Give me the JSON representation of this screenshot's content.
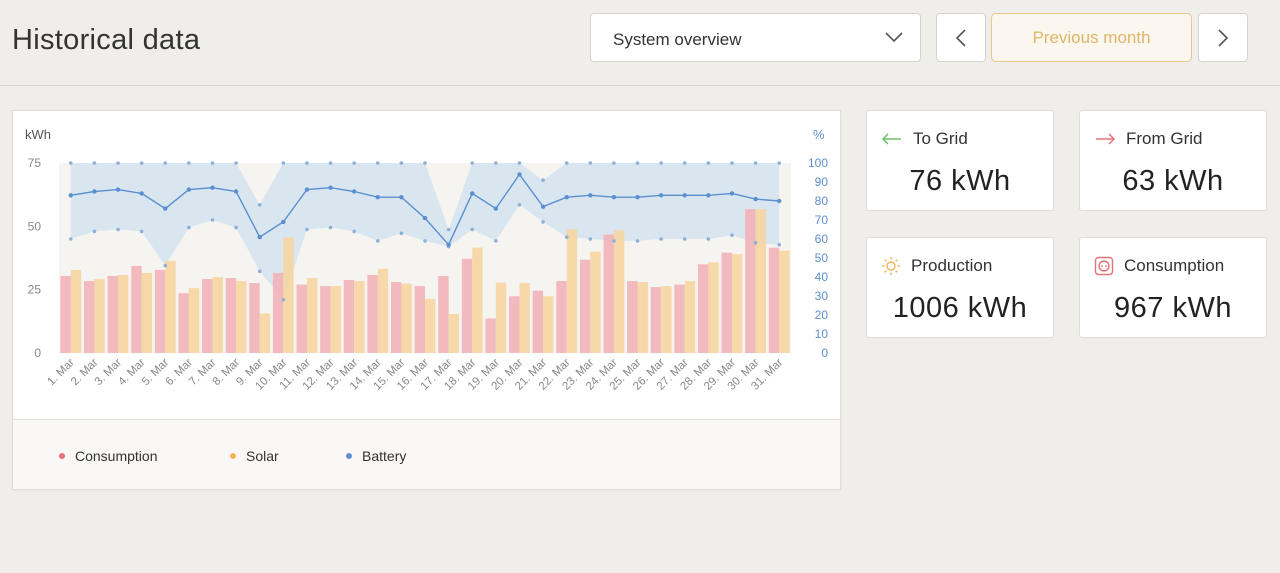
{
  "header": {
    "title": "Historical data",
    "select_value": "System overview",
    "previous_label": "Previous month"
  },
  "stats": {
    "to_grid": {
      "label": "To Grid",
      "value": "76 kWh"
    },
    "from_grid": {
      "label": "From Grid",
      "value": "63 kWh"
    },
    "production": {
      "label": "Production",
      "value": "1006 kWh"
    },
    "consumption": {
      "label": "Consumption",
      "value": "967 kWh"
    }
  },
  "legend": {
    "consumption": "Consumption",
    "solar": "Solar",
    "battery": "Battery"
  },
  "colors": {
    "consumption": "#f2b3b8",
    "solar": "#f7d49c",
    "battery": "#5b8fcf",
    "battery_band": "#d6e4ef",
    "accent": "#e0b46a"
  },
  "chart_data": {
    "type": "bar",
    "ylabel_left": "kWh",
    "ylabel_right": "%",
    "ylim_left": [
      0,
      75
    ],
    "ylim_right": [
      0,
      100
    ],
    "yticks_left": [
      0,
      25,
      50,
      75
    ],
    "yticks_right": [
      0,
      10,
      20,
      30,
      40,
      50,
      60,
      70,
      80,
      90,
      100
    ],
    "categories": [
      "1. Mar",
      "2. Mar",
      "3. Mar",
      "4. Mar",
      "5. Mar",
      "6. Mar",
      "7. Mar",
      "8. Mar",
      "9. Mar",
      "10. Mar",
      "11. Mar",
      "12. Mar",
      "13. Mar",
      "14. Mar",
      "15. Mar",
      "16. Mar",
      "17. Mar",
      "18. Mar",
      "19. Mar",
      "20. Mar",
      "21. Mar",
      "22. Mar",
      "23. Mar",
      "24. Mar",
      "25. Mar",
      "26. Mar",
      "27. Mar",
      "28. Mar",
      "29. Mar",
      "30. Mar",
      "31. Mar"
    ],
    "series": [
      {
        "name": "Consumption",
        "type": "bar",
        "axis": "left",
        "values": [
          30.4,
          28.4,
          30.4,
          34.4,
          32.8,
          23.6,
          29.2,
          29.6,
          27.6,
          31.6,
          27.0,
          26.4,
          28.8,
          30.8,
          28.0,
          26.4,
          30.4,
          37.2,
          13.6,
          22.4,
          24.6,
          28.4,
          36.8,
          46.8,
          28.4,
          26.0,
          27.0,
          35.0,
          39.6,
          56.8,
          41.6
        ]
      },
      {
        "name": "Solar",
        "type": "bar",
        "axis": "left",
        "values": [
          32.8,
          29.2,
          30.8,
          31.6,
          36.4,
          25.6,
          30.0,
          28.4,
          15.6,
          45.6,
          29.6,
          26.4,
          28.4,
          33.2,
          27.4,
          21.4,
          15.4,
          41.6,
          27.8,
          27.6,
          22.4,
          48.8,
          40.0,
          48.4,
          28.0,
          26.4,
          28.4,
          35.8,
          39.0,
          56.8,
          40.4
        ]
      },
      {
        "name": "Battery",
        "type": "line",
        "axis": "right",
        "avg": [
          83,
          85,
          86,
          84,
          76,
          86,
          87,
          85,
          61,
          69,
          86,
          87,
          85,
          82,
          82,
          71,
          57,
          84,
          76,
          94,
          77,
          82,
          83,
          82,
          82,
          83,
          83,
          83,
          84,
          81,
          80
        ],
        "max": [
          100,
          100,
          100,
          100,
          100,
          100,
          100,
          100,
          78,
          100,
          100,
          100,
          100,
          100,
          100,
          100,
          65,
          100,
          100,
          100,
          91,
          100,
          100,
          100,
          100,
          100,
          100,
          100,
          100,
          100,
          100
        ],
        "min": [
          60,
          64,
          65,
          64,
          46,
          66,
          70,
          66,
          43,
          28,
          65,
          66,
          64,
          59,
          63,
          59,
          56,
          65,
          59,
          78,
          69,
          61,
          60,
          59,
          59,
          60,
          60,
          60,
          62,
          58,
          57
        ]
      }
    ],
    "grid": false,
    "legend_position": "bottom-left"
  }
}
